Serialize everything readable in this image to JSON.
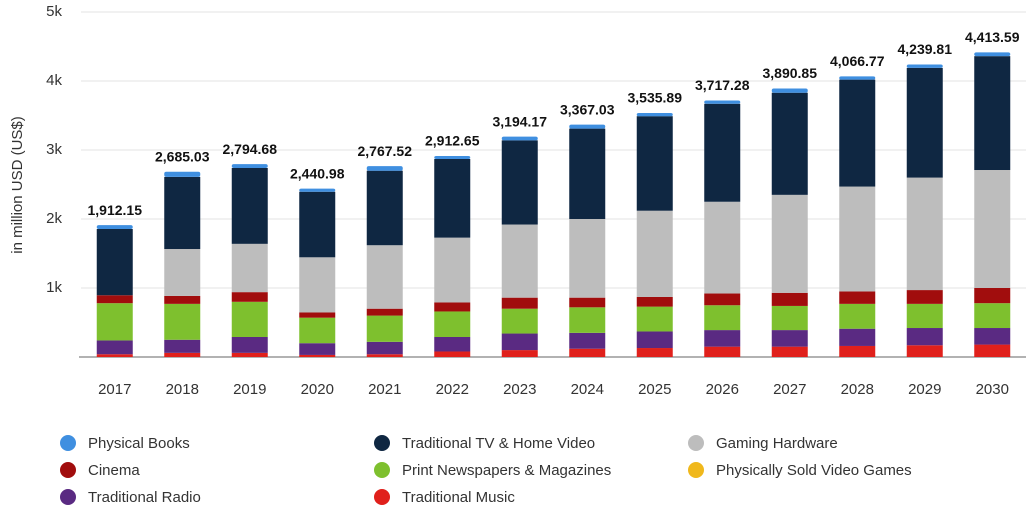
{
  "chart_data": {
    "type": "stacked_bar",
    "y_label": "in million USD (US$)",
    "categories": [
      "2017",
      "2018",
      "2019",
      "2020",
      "2021",
      "2022",
      "2023",
      "2024",
      "2025",
      "2026",
      "2027",
      "2028",
      "2029",
      "2030"
    ],
    "series": [
      {
        "name": "Physical Books",
        "color": "#3f8fe0",
        "values": [
          57,
          75,
          55,
          46,
          67,
          43,
          54,
          57,
          46,
          47,
          61,
          47,
          50,
          54
        ]
      },
      {
        "name": "Traditional TV & Home Video",
        "color": "#0f2742",
        "values": [
          960,
          1045,
          1100,
          950,
          1080,
          1140,
          1220,
          1310,
          1370,
          1420,
          1480,
          1550,
          1590,
          1650
        ]
      },
      {
        "name": "Gaming Hardware",
        "color": "#bdbdbd",
        "values": [
          0,
          680,
          700,
          800,
          920,
          940,
          1060,
          1140,
          1250,
          1330,
          1420,
          1520,
          1630,
          1710
        ]
      },
      {
        "name": "Cinema",
        "color": "#a10d0d",
        "values": [
          115,
          115,
          140,
          75,
          100,
          130,
          160,
          140,
          140,
          170,
          190,
          180,
          200,
          220
        ]
      },
      {
        "name": "Print Newspapers & Magazines",
        "color": "#7ec02e",
        "values": [
          540,
          520,
          510,
          370,
          380,
          370,
          360,
          370,
          360,
          360,
          350,
          360,
          350,
          360
        ]
      },
      {
        "name": "Physically Sold Video Games",
        "color": "#f0b81c",
        "values": [
          0,
          0,
          0,
          0,
          0,
          0,
          0,
          0,
          0,
          0,
          0,
          0,
          0,
          0
        ]
      },
      {
        "name": "Traditional Radio",
        "color": "#5a2a82",
        "values": [
          200,
          190,
          230,
          170,
          180,
          210,
          240,
          230,
          240,
          240,
          240,
          250,
          250,
          240
        ]
      },
      {
        "name": "Traditional Music",
        "color": "#e0201b",
        "values": [
          40,
          60,
          60,
          30,
          40,
          80,
          100,
          120,
          130,
          150,
          150,
          160,
          170,
          180
        ]
      }
    ],
    "totals": [
      1912.15,
      2685.03,
      2794.68,
      2440.98,
      2767.52,
      2912.65,
      3194.17,
      3367.03,
      3535.89,
      3717.28,
      3890.85,
      4066.77,
      4239.81,
      4413.59
    ],
    "total_labels": [
      "1,912.15",
      "2,685.03",
      "2,794.68",
      "2,440.98",
      "2,767.52",
      "2,912.65",
      "3,194.17",
      "3,367.03",
      "3,535.89",
      "3,717.28",
      "3,890.85",
      "4,066.77",
      "4,239.81",
      "4,413.59"
    ],
    "ylim": [
      0,
      5000
    ],
    "yticks": [
      {
        "value": 1000,
        "label": "1k"
      },
      {
        "value": 2000,
        "label": "2k"
      },
      {
        "value": 3000,
        "label": "3k"
      },
      {
        "value": 4000,
        "label": "4k"
      },
      {
        "value": 5000,
        "label": "5k"
      }
    ],
    "grid": true
  }
}
